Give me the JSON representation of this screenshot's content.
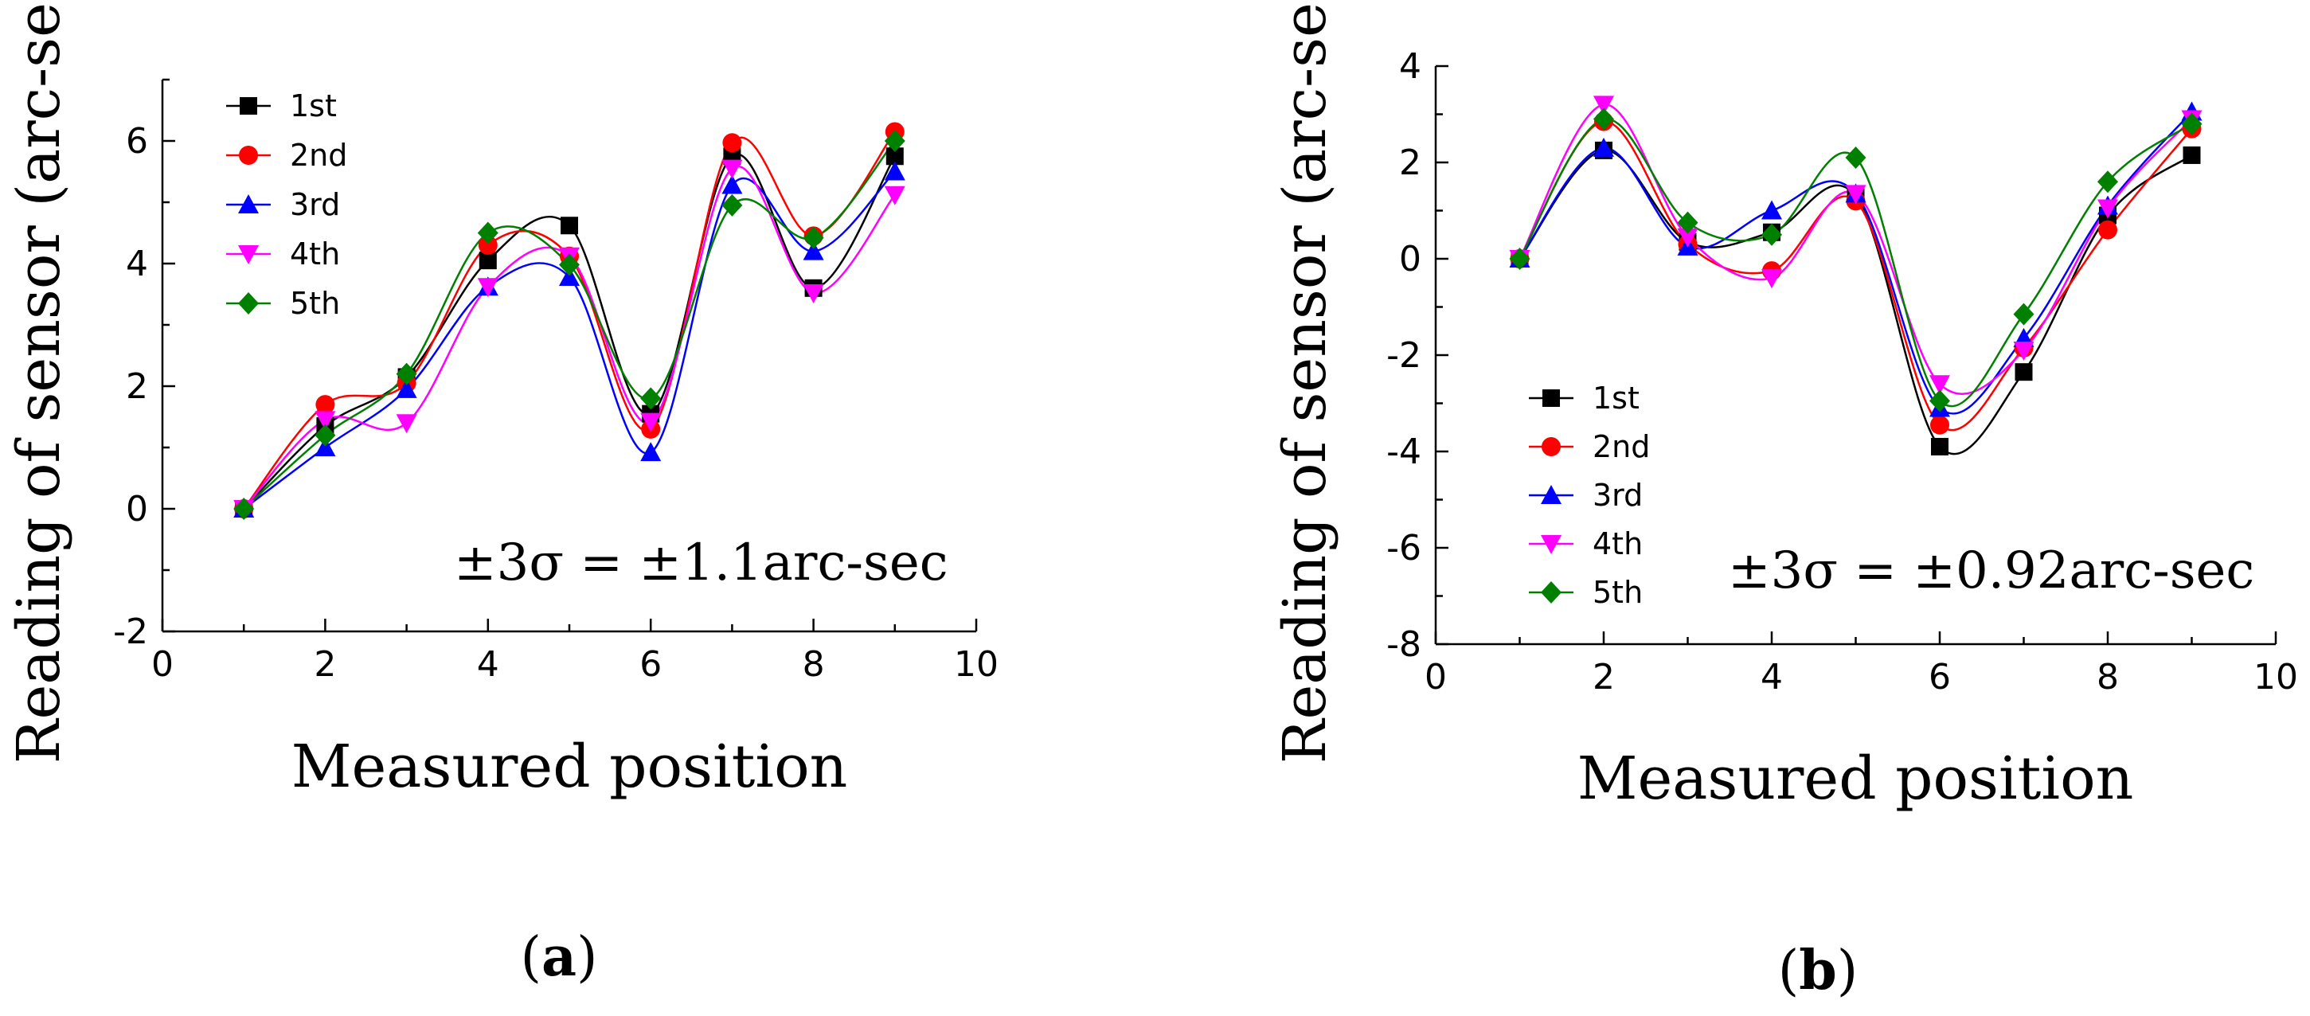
{
  "series_styles": [
    {
      "color": "#000000",
      "marker": "square"
    },
    {
      "color": "#ff0000",
      "marker": "circle"
    },
    {
      "color": "#0000ff",
      "marker": "triangle-up"
    },
    {
      "color": "#ff00ff",
      "marker": "triangle-down"
    },
    {
      "color": "#008000",
      "marker": "diamond"
    }
  ],
  "chart_data": [
    {
      "type": "line",
      "panel_label": {
        "open": "(",
        "letter": "a",
        "close": ")"
      },
      "xlabel": "Measured position",
      "ylabel": "Reading of sensor (arc-sec)",
      "xlim": [
        0,
        10
      ],
      "ylim": [
        -2,
        7
      ],
      "xticks": [
        "0",
        "2",
        "4",
        "6",
        "8",
        "10"
      ],
      "yticks": [
        "-2",
        "0",
        "2",
        "4",
        "6"
      ],
      "x": [
        1,
        2,
        3,
        4,
        5,
        6,
        7,
        8,
        9
      ],
      "series": [
        {
          "name": "1st",
          "values": [
            0,
            1.35,
            2.15,
            4.05,
            4.62,
            1.55,
            5.75,
            3.6,
            5.75
          ]
        },
        {
          "name": "2nd",
          "values": [
            0,
            1.7,
            2.05,
            4.3,
            4.12,
            1.3,
            5.97,
            4.45,
            6.15
          ]
        },
        {
          "name": "3rd",
          "values": [
            0,
            1.0,
            1.95,
            3.62,
            3.78,
            0.92,
            5.28,
            4.2,
            5.5
          ]
        },
        {
          "name": "4th",
          "values": [
            0,
            1.45,
            1.4,
            3.62,
            4.12,
            1.42,
            5.55,
            3.52,
            5.12
          ]
        },
        {
          "name": "5th",
          "values": [
            0,
            1.2,
            2.2,
            4.5,
            3.98,
            1.8,
            4.95,
            4.42,
            6.0
          ]
        }
      ],
      "legend_position": "top-left",
      "annotation": "±3σ = ±1.1arc-sec",
      "grid": false
    },
    {
      "type": "line",
      "panel_label": {
        "open": "(",
        "letter": "b",
        "close": ")"
      },
      "xlabel": "Measured position",
      "ylabel": "Reading of sensor (arc-sec)",
      "xlim": [
        0,
        10
      ],
      "ylim": [
        -8,
        4
      ],
      "xticks": [
        "0",
        "2",
        "4",
        "6",
        "8",
        "10"
      ],
      "yticks": [
        "-8",
        "-6",
        "-4",
        "-2",
        "0",
        "2",
        "4"
      ],
      "x": [
        1,
        2,
        3,
        4,
        5,
        6,
        7,
        8,
        9
      ],
      "series": [
        {
          "name": "1st",
          "values": [
            0,
            2.25,
            0.35,
            0.55,
            1.3,
            -3.9,
            -2.35,
            0.9,
            2.15
          ]
        },
        {
          "name": "2nd",
          "values": [
            0,
            2.85,
            0.3,
            -0.25,
            1.2,
            -3.45,
            -1.85,
            0.6,
            2.7
          ]
        },
        {
          "name": "3rd",
          "values": [
            0,
            2.3,
            0.25,
            1.0,
            1.35,
            -3.1,
            -1.65,
            1.1,
            3.05
          ]
        },
        {
          "name": "4th",
          "values": [
            0,
            3.2,
            0.45,
            -0.4,
            1.35,
            -2.6,
            -1.9,
            1.05,
            2.9
          ]
        },
        {
          "name": "5th",
          "values": [
            0,
            2.9,
            0.75,
            0.5,
            2.1,
            -2.95,
            -1.15,
            1.6,
            2.8
          ]
        }
      ],
      "legend_position": "bottom-left",
      "annotation": "±3σ = ±0.92arc-sec",
      "grid": false
    }
  ]
}
